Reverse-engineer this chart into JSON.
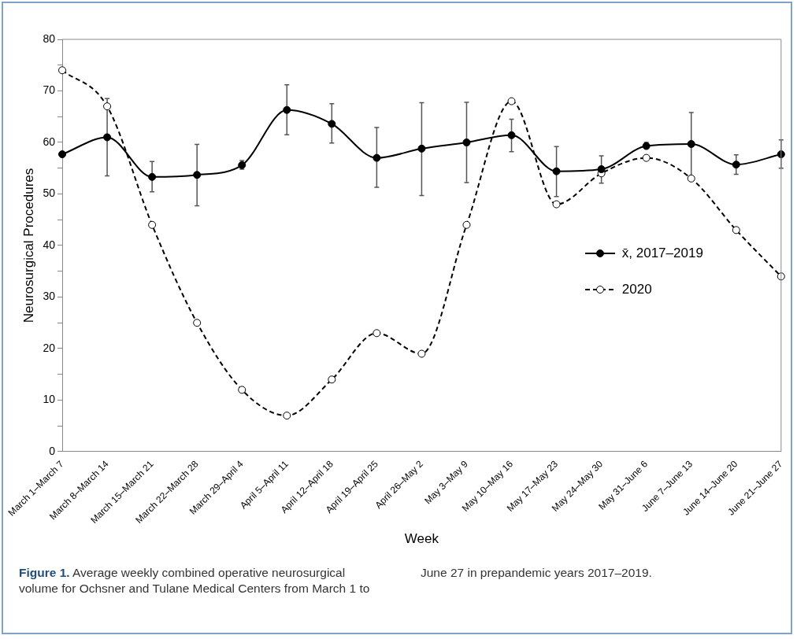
{
  "chart_data": {
    "type": "line",
    "categories": [
      "March 1–March 7",
      "March 8–March 14",
      "March 15–March 21",
      "March 22–March 28",
      "March 29–April 4",
      "April 5–April 11",
      "April 12–April 18",
      "April 19–April 25",
      "April 26–May 2",
      "May 3–May 9",
      "May 10–May 16",
      "May 17–May 23",
      "May 24–May 30",
      "May 31–June 6",
      "June 7–June 13",
      "June 14–June 20",
      "June 21–June 27"
    ],
    "series": [
      {
        "name": "x̄, 2017–2019",
        "color": "#000000",
        "line_style": "solid",
        "values": [
          57.7,
          61.0,
          53.3,
          53.7,
          55.6,
          66.3,
          63.6,
          57.0,
          58.8,
          60.0,
          61.4,
          54.4,
          54.8,
          59.3,
          59.7,
          55.7,
          57.7
        ],
        "errors": [
          null,
          [
            53.5,
            68.5
          ],
          [
            50.4,
            56.3
          ],
          [
            47.7,
            59.6
          ],
          [
            54.8,
            56.5
          ],
          [
            61.5,
            71.2
          ],
          [
            59.9,
            67.5
          ],
          [
            51.3,
            62.9
          ],
          [
            49.7,
            67.7
          ],
          [
            52.2,
            67.8
          ],
          [
            58.2,
            64.5
          ],
          [
            49.5,
            59.2
          ],
          [
            52.1,
            57.4
          ],
          [
            58.9,
            60.0
          ],
          [
            53.1,
            65.8
          ],
          [
            53.8,
            57.6
          ],
          [
            55.0,
            60.5
          ]
        ]
      },
      {
        "name": "2020",
        "color": "#000000",
        "line_style": "dashed",
        "values": [
          74,
          67,
          44,
          25,
          12,
          7,
          14,
          23,
          19,
          44,
          68,
          48,
          54,
          57,
          53,
          43,
          34
        ]
      }
    ],
    "xlabel": "Week",
    "ylabel": "Neurosurgical Procedures",
    "ylim": [
      0,
      80
    ],
    "yticks": [
      0,
      {
        "value": 5,
        "label": null
      },
      10,
      {
        "value": 15,
        "label": null
      },
      20,
      {
        "value": 25,
        "label": null
      },
      30,
      {
        "value": 35,
        "label": null
      },
      40,
      {
        "value": 45,
        "label": null
      },
      50,
      {
        "value": 55,
        "label": null
      },
      60,
      {
        "value": 65,
        "label": null
      },
      70,
      {
        "value": 75,
        "label": null
      },
      80
    ],
    "grid": false,
    "legend": "right",
    "marker": "circle",
    "annotations": [
      "Figure 1. Average weekly combined operative neurosurgical volume for Ochsner and Tulane Medical Centers from March 1 to June 27 in prepandemic years 2017–2019."
    ]
  }
}
